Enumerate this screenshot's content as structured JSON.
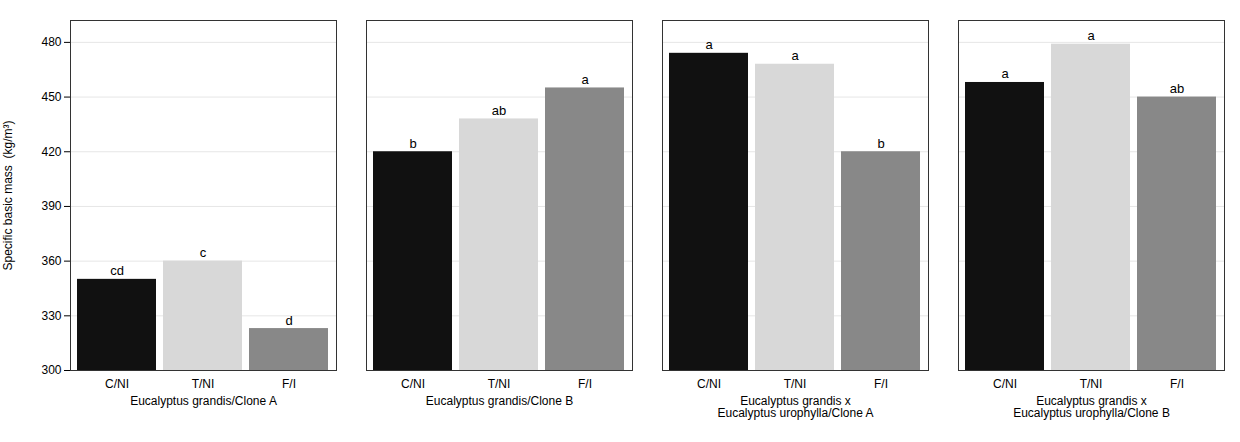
{
  "chart_data": {
    "type": "bar",
    "categories": [
      "Eucalyptus grandis/Clone A",
      "Eucalyptus grandis/Clone B",
      "Eucalyptus grandis x\nEucalyptus urophylla/Clone A",
      "Eucalyptus grandis x\nEucalyptus urophylla/Clone B"
    ],
    "series": [
      {
        "name": "C/NI",
        "color": "#111111",
        "values": [
          350,
          420,
          474,
          458
        ],
        "sig": [
          "cd",
          "b",
          "a",
          "a"
        ]
      },
      {
        "name": "T/NI",
        "color": "#d8d8d8",
        "values": [
          360,
          438,
          468,
          479
        ],
        "sig": [
          "c",
          "ab",
          "a",
          "a"
        ]
      },
      {
        "name": "F/I",
        "color": "#888888",
        "values": [
          323,
          455,
          420,
          450
        ],
        "sig": [
          "d",
          "a",
          "b",
          "ab"
        ]
      }
    ],
    "ylabel": "Specific basic mass  (kg/m³)",
    "ylim": [
      300,
      492
    ],
    "yticks": [
      300,
      330,
      360,
      390,
      420,
      450,
      480
    ],
    "grid": true
  }
}
